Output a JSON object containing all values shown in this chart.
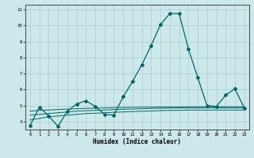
{
  "xlabel": "Humidex (Indice chaleur)",
  "background_color": "#cce8ea",
  "grid_color": "#aacdd0",
  "line_color": "#006666",
  "xlim": [
    -0.5,
    23.5
  ],
  "ylim": [
    3.5,
    11.3
  ],
  "x": [
    0,
    1,
    2,
    3,
    4,
    5,
    6,
    7,
    8,
    9,
    10,
    11,
    12,
    13,
    14,
    15,
    16,
    17,
    18,
    19,
    20,
    21,
    22,
    23
  ],
  "main_y": [
    3.75,
    4.9,
    4.35,
    3.7,
    4.65,
    5.1,
    5.3,
    4.95,
    4.45,
    4.4,
    5.55,
    6.5,
    7.55,
    8.75,
    10.05,
    10.75,
    10.75,
    8.55,
    6.75,
    5.0,
    4.95,
    5.65,
    6.05,
    4.85
  ],
  "line1_y": [
    4.1,
    4.2,
    4.3,
    4.35,
    4.4,
    4.45,
    4.5,
    4.52,
    4.55,
    4.58,
    4.6,
    4.62,
    4.64,
    4.66,
    4.68,
    4.7,
    4.7,
    4.72,
    4.72,
    4.72,
    4.72,
    4.72,
    4.72,
    4.72
  ],
  "line2_y": [
    4.4,
    4.45,
    4.5,
    4.55,
    4.6,
    4.65,
    4.68,
    4.7,
    4.72,
    4.75,
    4.77,
    4.78,
    4.8,
    4.82,
    4.83,
    4.84,
    4.85,
    4.85,
    4.85,
    4.85,
    4.85,
    4.85,
    4.85,
    4.85
  ],
  "line3_y": [
    4.65,
    4.7,
    4.72,
    4.75,
    4.78,
    4.8,
    4.82,
    4.84,
    4.85,
    4.87,
    4.88,
    4.89,
    4.9,
    4.9,
    4.91,
    4.91,
    4.91,
    4.92,
    4.92,
    4.92,
    4.92,
    4.92,
    4.92,
    4.92
  ],
  "yticks": [
    4,
    5,
    6,
    7,
    8,
    9,
    10,
    11
  ],
  "xticks": [
    0,
    1,
    2,
    3,
    4,
    5,
    6,
    7,
    8,
    9,
    10,
    11,
    12,
    13,
    14,
    15,
    16,
    17,
    18,
    19,
    20,
    21,
    22,
    23
  ]
}
